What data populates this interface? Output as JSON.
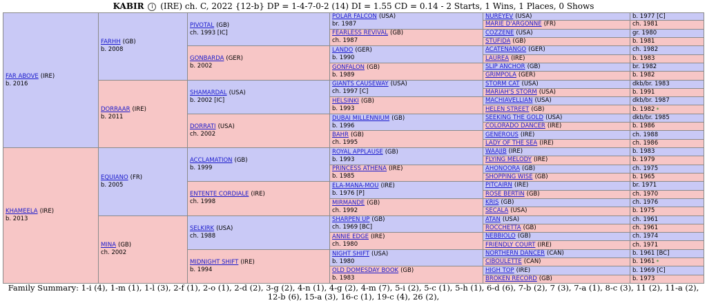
{
  "header": {
    "horse": "KABIR",
    "details": "(IRE) ch. C, 2022 {12-b} DP = 1-4-7-0-2 (14) DI = 1.55   CD = 0.14 - 2 Starts, 1 Wins, 1 Places, 0 Shows",
    "icon": "info-circle-icon"
  },
  "colors": {
    "sire_bg": "#c9c9f6",
    "dam_bg": "#f7c6c6",
    "link": "#1a1acc",
    "star": "#2e8b2e"
  },
  "gen1": [
    {
      "name": "FAR ABOVE",
      "country": "(IRE)",
      "info": "b. 2016"
    },
    {
      "name": "KHAMEELA",
      "country": "(IRE)",
      "info": "b. 2013"
    }
  ],
  "gen2": [
    {
      "name": "FARHH",
      "country": "(GB)",
      "info": "b. 2008"
    },
    {
      "name": "DORRAAR",
      "country": "(IRE)",
      "info": "b. 2011"
    },
    {
      "name": "EQUIANO",
      "country": "(FR)",
      "info": "b. 2005"
    },
    {
      "name": "MINA",
      "country": "(GB)",
      "info": "ch. 2002"
    }
  ],
  "gen3": [
    {
      "name": "PIVOTAL",
      "country": "(GB)",
      "info": "ch. 1993 [IC]"
    },
    {
      "name": "GONBARDA",
      "country": "(GER)",
      "info": "b. 2002"
    },
    {
      "name": "SHAMARDAL",
      "country": "(USA)",
      "info": "b. 2002 [IC]"
    },
    {
      "name": "DORRATI",
      "country": "(USA)",
      "info": "ch. 2002"
    },
    {
      "name": "ACCLAMATION",
      "country": "(GB)",
      "info": "b. 1999"
    },
    {
      "name": "ENTENTE CORDIALE",
      "country": "(IRE)",
      "info": "ch. 1998"
    },
    {
      "name": "SELKIRK",
      "country": "(USA)",
      "info": "ch. 1988"
    },
    {
      "name": "MIDNIGHT SHIFT",
      "country": "(IRE)",
      "info": "b. 1994"
    }
  ],
  "gen4": [
    {
      "name": "POLAR FALCON",
      "country": "(USA)",
      "info": "br. 1987"
    },
    {
      "name": "FEARLESS REVIVAL",
      "country": "(GB)",
      "info": "ch. 1987"
    },
    {
      "name": "LANDO",
      "country": "(GER)",
      "info": "b. 1990"
    },
    {
      "name": "GONFALON",
      "country": "(GB)",
      "info": "b. 1989"
    },
    {
      "name": "GIANTS CAUSEWAY",
      "country": "(USA)",
      "info": "ch. 1997 [C]"
    },
    {
      "name": "HELSINKI",
      "country": "(GB)",
      "info": "b. 1993"
    },
    {
      "name": "DUBAI MILLENNIUM",
      "country": "(GB)",
      "info": "b. 1996"
    },
    {
      "name": "BAHR",
      "country": "(GB)",
      "info": "ch. 1995"
    },
    {
      "name": "ROYAL APPLAUSE",
      "country": "(GB)",
      "info": "b. 1993"
    },
    {
      "name": "PRINCESS ATHENA",
      "country": "(IRE)",
      "info": "b. 1985"
    },
    {
      "name": "ELA-MANA-MOU",
      "country": "(IRE)",
      "info": "b. 1976 [P]"
    },
    {
      "name": "MIRMANDE",
      "country": "(GB)",
      "info": "ch. 1992"
    },
    {
      "name": "SHARPEN UP",
      "country": "(GB)",
      "info": "ch. 1969 [BC]"
    },
    {
      "name": "ANNIE EDGE",
      "country": "(IRE)",
      "info": "ch. 1980"
    },
    {
      "name": "NIGHT SHIFT",
      "country": "(USA)",
      "info": "b. 1980"
    },
    {
      "name": "OLD DOMESDAY BOOK",
      "country": "(GB)",
      "info": "b. 1983"
    }
  ],
  "gen5": [
    {
      "name": "NUREYEV",
      "country": "(USA)",
      "info": "b. 1977 [C]",
      "star": ""
    },
    {
      "name": "MARIE D'ARGONNE",
      "country": "(FR)",
      "info": "ch. 1981",
      "star": ""
    },
    {
      "name": "COZZENE",
      "country": "(USA)",
      "info": "gr. 1980",
      "star": ""
    },
    {
      "name": "STUFIDA",
      "country": "(GB)",
      "info": "b. 1981",
      "star": ""
    },
    {
      "name": "ACATENANGO",
      "country": "(GER)",
      "info": "ch. 1982",
      "star": ""
    },
    {
      "name": "LAUREA",
      "country": "(IRE)",
      "info": "b. 1983",
      "star": ""
    },
    {
      "name": "SLIP ANCHOR",
      "country": "(GB)",
      "info": "br. 1982",
      "star": ""
    },
    {
      "name": "GRIMPOLA",
      "country": "(GER)",
      "info": "b. 1982",
      "star": ""
    },
    {
      "name": "STORM CAT",
      "country": "(USA)",
      "info": "dkb/br. 1983",
      "star": ""
    },
    {
      "name": "MARIAH'S STORM",
      "country": "(USA)",
      "info": "b. 1991",
      "star": ""
    },
    {
      "name": "MACHIAVELLIAN",
      "country": "(USA)",
      "info": "dkb/br. 1987",
      "star": ""
    },
    {
      "name": "HELEN STREET",
      "country": "(GB)",
      "info": "b. 1982",
      "star": "*"
    },
    {
      "name": "SEEKING THE GOLD",
      "country": "(USA)",
      "info": "dkb/br. 1985",
      "star": ""
    },
    {
      "name": "COLORADO DANCER",
      "country": "(IRE)",
      "info": "b. 1986",
      "star": ""
    },
    {
      "name": "GENEROUS",
      "country": "(IRE)",
      "info": "ch. 1988",
      "star": ""
    },
    {
      "name": "LADY OF THE SEA",
      "country": "(IRE)",
      "info": "ch. 1986",
      "star": ""
    },
    {
      "name": "WAAJIB",
      "country": "(IRE)",
      "info": "b. 1983",
      "star": ""
    },
    {
      "name": "FLYING MELODY",
      "country": "(IRE)",
      "info": "b. 1979",
      "star": ""
    },
    {
      "name": "AHONOORA",
      "country": "(GB)",
      "info": "ch. 1975",
      "star": ""
    },
    {
      "name": "SHOPPING WISE",
      "country": "(GB)",
      "info": "b. 1965",
      "star": ""
    },
    {
      "name": "PITCAIRN",
      "country": "(IRE)",
      "info": "br. 1971",
      "star": ""
    },
    {
      "name": "ROSE BERTIN",
      "country": "(GB)",
      "info": "ch. 1970",
      "star": ""
    },
    {
      "name": "KRIS",
      "country": "(GB)",
      "info": "ch. 1976",
      "star": ""
    },
    {
      "name": "SECALA",
      "country": "(USA)",
      "info": "b. 1975",
      "star": ""
    },
    {
      "name": "ATAN",
      "country": "(USA)",
      "info": "ch. 1961",
      "star": ""
    },
    {
      "name": "ROCCHETTA",
      "country": "(GB)",
      "info": "ch. 1961",
      "star": ""
    },
    {
      "name": "NEBBIOLO",
      "country": "(GB)",
      "info": "ch. 1974",
      "star": ""
    },
    {
      "name": "FRIENDLY COURT",
      "country": "(IRE)",
      "info": "ch. 1971",
      "star": ""
    },
    {
      "name": "NORTHERN DANCER",
      "country": "(CAN)",
      "info": "b. 1961 [BC]",
      "star": ""
    },
    {
      "name": "CIBOULETTE",
      "country": "(CAN)",
      "info": "b. 1961",
      "star": "*"
    },
    {
      "name": "HIGH TOP",
      "country": "(IRE)",
      "info": "b. 1969 [C]",
      "star": ""
    },
    {
      "name": "BROKEN RECORD",
      "country": "(GB)",
      "info": "b. 1973",
      "star": ""
    }
  ],
  "family_summary": "Family Summary: 1-i (4), 1-m (1), 1-l (3), 2-f (1), 2-o (1), 2-d (2), 3-g (2), 4-n (1), 4-g (2), 4-m (7), 5-i (2), 5-c (1), 5-h (1), 6-d (6), 7-b (2), 7 (3), 7-a (1), 8-c (3), 11 (2), 11-a (2), 12-b (6), 15-a (3), 16-c (1), 19-c (4), 26 (2),"
}
